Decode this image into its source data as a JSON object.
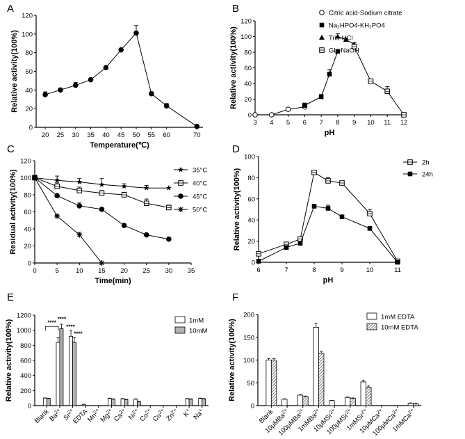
{
  "chart_data": [
    {
      "panel": "A",
      "type": "line",
      "xlabel": "Temperature(℃)",
      "ylabel": "Relative activity(100%)",
      "xlim": [
        17,
        72
      ],
      "ylim": [
        0,
        120
      ],
      "xticks": [
        20,
        25,
        30,
        35,
        40,
        45,
        50,
        55,
        60,
        70
      ],
      "yticks": [
        0,
        20,
        40,
        60,
        80,
        100,
        120
      ],
      "series": [
        {
          "name": "activity",
          "marker": "circle-filled",
          "x": [
            20,
            25,
            30,
            35,
            40,
            45,
            50,
            55,
            60,
            70
          ],
          "y": [
            35,
            40,
            45,
            51,
            64,
            83,
            101,
            36,
            23,
            1
          ],
          "err": [
            3,
            1.5,
            3,
            1.5,
            1,
            1,
            8,
            2,
            2.5,
            0.5
          ]
        }
      ]
    },
    {
      "panel": "B",
      "type": "line",
      "xlabel": "pH",
      "ylabel": "Relative activity(100%)",
      "xlim": [
        3,
        12
      ],
      "ylim": [
        0,
        120
      ],
      "xticks": [
        3,
        4,
        5,
        6,
        7,
        8,
        9,
        10,
        11,
        12
      ],
      "yticks": [
        0,
        20,
        40,
        60,
        80,
        100,
        120
      ],
      "legend": [
        "Citric acid-Sodium citrate",
        "Na₂HPO4-KH₂PO4",
        "Tris-HCl",
        "Gly-NaOH"
      ],
      "series": [
        {
          "name": "Citric acid-Sodium citrate",
          "marker": "circle-open",
          "x": [
            3,
            4,
            5,
            6
          ],
          "y": [
            0,
            0,
            7,
            10
          ],
          "err": [
            0,
            0,
            1,
            1.5
          ]
        },
        {
          "name": "Na₂HPO4-KH₂PO4",
          "marker": "square-filled",
          "x": [
            6,
            7,
            7.5,
            8
          ],
          "y": [
            12,
            23,
            52,
            81
          ],
          "err": [
            3,
            3,
            6,
            2
          ]
        },
        {
          "name": "Tris-HCl",
          "marker": "triangle-filled",
          "x": [
            8,
            8.5,
            9
          ],
          "y": [
            100,
            96,
            90
          ],
          "err": [
            3.5,
            2,
            2
          ]
        },
        {
          "name": "Gly-NaOH",
          "marker": "square-open",
          "x": [
            9,
            10,
            11,
            12
          ],
          "y": [
            87,
            43,
            30,
            0
          ],
          "err": [
            2,
            1,
            6,
            0
          ]
        }
      ]
    },
    {
      "panel": "C",
      "type": "line",
      "xlabel": "Time(min)",
      "ylabel": "Residual activity(100%)",
      "xlim": [
        0,
        35
      ],
      "ylim": [
        0,
        120
      ],
      "xticks": [
        0,
        5,
        10,
        15,
        20,
        25,
        30,
        35
      ],
      "yticks": [
        0,
        20,
        40,
        60,
        80,
        100,
        120
      ],
      "legend": [
        "35°C",
        "40°C",
        "45°C",
        "50°C"
      ],
      "series": [
        {
          "name": "35°C",
          "marker": "star",
          "x": [
            0,
            5,
            10,
            15,
            20,
            25,
            30
          ],
          "y": [
            100,
            97,
            95,
            92,
            90,
            88,
            88
          ],
          "err": [
            3,
            5,
            4,
            7,
            3,
            3,
            0
          ]
        },
        {
          "name": "40°C",
          "marker": "square-open",
          "x": [
            0,
            5,
            10,
            15,
            20,
            25,
            30
          ],
          "y": [
            100,
            90,
            85,
            82,
            80,
            70,
            65
          ],
          "err": [
            3,
            4,
            4,
            3,
            3,
            5,
            3
          ]
        },
        {
          "name": "45°C",
          "marker": "circle-filled",
          "x": [
            0,
            5,
            10,
            15,
            20,
            25,
            30
          ],
          "y": [
            100,
            79,
            67,
            63,
            44,
            33,
            28
          ],
          "err": [
            2,
            1.5,
            3.5,
            1,
            1,
            1,
            1
          ]
        },
        {
          "name": "50°C",
          "marker": "asterisk",
          "x": [
            0,
            5,
            10,
            15
          ],
          "y": [
            100,
            55,
            33,
            0
          ],
          "err": [
            2,
            1,
            3,
            0
          ]
        }
      ]
    },
    {
      "panel": "D",
      "type": "line",
      "xlabel": "pH",
      "ylabel": "Relative activity(100%)",
      "xlim": [
        6,
        11
      ],
      "ylim": [
        0,
        100
      ],
      "xticks": [
        6,
        7,
        8,
        9,
        10,
        11
      ],
      "yticks": [
        0,
        20,
        40,
        60,
        80,
        100
      ],
      "legend": [
        "2h",
        "24h"
      ],
      "series": [
        {
          "name": "2h",
          "marker": "square-open",
          "x": [
            6,
            7,
            7.5,
            8,
            8.5,
            9,
            10,
            11
          ],
          "y": [
            8,
            17,
            22,
            85,
            77,
            75,
            46,
            1
          ],
          "err": [
            1,
            1,
            1,
            1,
            3,
            1,
            4,
            0.5
          ]
        },
        {
          "name": "24h",
          "marker": "square-filled",
          "x": [
            6,
            7,
            7.5,
            8,
            8.5,
            9,
            10,
            11
          ],
          "y": [
            1,
            14,
            18,
            53,
            51,
            43,
            32,
            0
          ],
          "err": [
            0.5,
            1,
            1,
            1,
            3,
            1,
            1,
            0.5
          ]
        }
      ]
    },
    {
      "panel": "E",
      "type": "bar",
      "ylabel": "Relative activity(100%)",
      "ylim": [
        0,
        1200
      ],
      "yticks": [
        0,
        200,
        400,
        600,
        800,
        1000,
        1200
      ],
      "categories": [
        "Blank",
        "Ba 2+",
        "Sr 2+",
        "EDTA",
        "Mn 2+",
        "Mg 2+",
        "Ca 2+",
        "Ni 2+",
        "Co 2+",
        "Cu 2+",
        "Zn 2+",
        "K+",
        "Na+"
      ],
      "legend": [
        "1mM",
        "10mM"
      ],
      "series": [
        {
          "name": "1mM",
          "fill": "#ffffff",
          "values": [
            100,
            840,
            920,
            15,
            0,
            95,
            90,
            85,
            0,
            0,
            0,
            90,
            95
          ],
          "err": [
            3,
            60,
            80,
            3,
            0,
            5,
            5,
            5,
            0,
            0,
            0,
            5,
            5
          ]
        },
        {
          "name": "10mM",
          "fill": "#b3b3b3",
          "values": [
            95,
            1020,
            840,
            0,
            0,
            85,
            80,
            50,
            0,
            0,
            0,
            85,
            90
          ],
          "err": [
            3,
            60,
            60,
            0,
            0,
            5,
            5,
            5,
            0,
            0,
            0,
            5,
            5
          ]
        }
      ],
      "annotations": [
        "****",
        "****",
        "****",
        "****"
      ]
    },
    {
      "panel": "F",
      "type": "bar",
      "ylabel": "Relative activity(100%)",
      "ylim": [
        0,
        200
      ],
      "yticks": [
        0,
        50,
        100,
        150,
        200
      ],
      "categories": [
        "Blank",
        "10μMBa 2+",
        "100μMBa 2+",
        "1mMBa 2+",
        "10μMSr 2+",
        "100μMSr 2+",
        "1mMSr 2+",
        "10μMCa 2+",
        "100μMCa 2+",
        "1mMCa 2+"
      ],
      "legend": [
        "1mM EDTA",
        "10mM EDTA"
      ],
      "series": [
        {
          "name": "1mM EDTA",
          "fill": "#ffffff",
          "values": [
            100,
            14,
            23,
            172,
            11,
            18,
            52,
            0,
            0,
            5
          ],
          "err": [
            3,
            1,
            1,
            9,
            0.5,
            1,
            4,
            0,
            0,
            1
          ]
        },
        {
          "name": "10mM EDTA",
          "fill": "hatch",
          "values": [
            100,
            0,
            20,
            115,
            0,
            16,
            40,
            0,
            0,
            4
          ],
          "err": [
            3,
            0,
            1,
            4,
            0,
            1,
            3,
            0,
            0,
            1
          ]
        }
      ]
    }
  ]
}
